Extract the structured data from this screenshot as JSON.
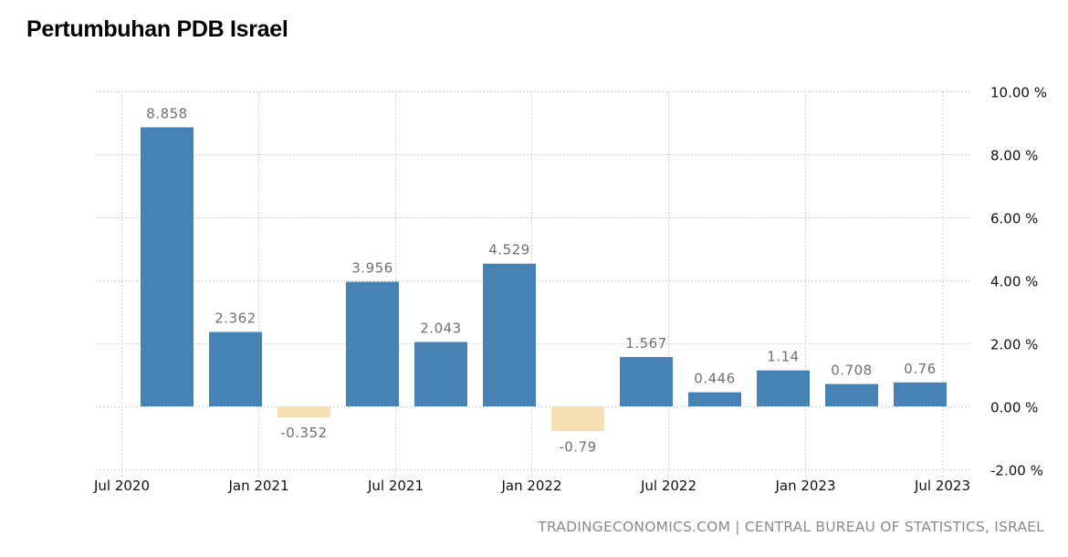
{
  "title": "Pertumbuhan PDB Israel",
  "source": "TRADINGECONOMICS.COM | CENTRAL BUREAU OF STATISTICS, ISRAEL",
  "colors": {
    "positive": "#4682b4",
    "negative": "#f5deb3",
    "label": "#707070",
    "grid": "#cfcfcf"
  },
  "chart_data": {
    "type": "bar",
    "title": "Pertumbuhan PDB Israel",
    "xlabel": "",
    "ylabel": "",
    "categories": [
      "Q3 2020",
      "Q4 2020",
      "Q1 2021",
      "Q2 2021",
      "Q3 2021",
      "Q4 2021",
      "Q1 2022",
      "Q2 2022",
      "Q3 2022",
      "Q4 2022",
      "Q1 2023",
      "Q2 2023"
    ],
    "values": [
      8.858,
      2.362,
      -0.352,
      3.956,
      2.043,
      4.529,
      -0.79,
      1.567,
      0.446,
      1.14,
      0.708,
      0.76
    ],
    "data_labels": [
      "8.858",
      "2.362",
      "-0.352",
      "3.956",
      "2.043",
      "4.529",
      "-0.79",
      "1.567",
      "0.446",
      "1.14",
      "0.708",
      "0.76"
    ],
    "ylim": [
      -2,
      10
    ],
    "yticks": [
      10,
      8,
      6,
      4,
      2,
      0,
      -2
    ],
    "ytick_labels": [
      "10.00 %",
      "8.00 %",
      "6.00 %",
      "4.00 %",
      "2.00 %",
      "0.00 %",
      "-2.00 %"
    ],
    "xtick_labels": [
      "Jul 2020",
      "Jan 2021",
      "Jul 2021",
      "Jan 2022",
      "Jul 2022",
      "Jan 2023",
      "Jul 2023"
    ],
    "y_axis_position": "right",
    "grid": true,
    "legend": "none"
  }
}
